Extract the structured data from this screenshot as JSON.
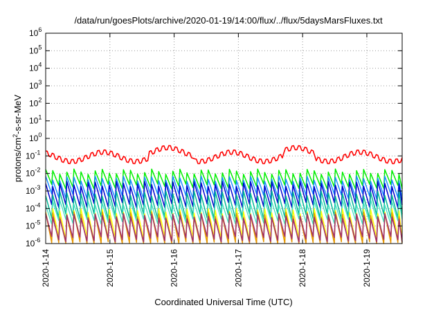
{
  "chart_data": {
    "type": "line",
    "title": "/data/run/goesPlots/archive/2020-01-19/14:00/flux/../flux/5daysMarsFluxes.txt",
    "xlabel": "Coordinated Universal Time (UTC)",
    "ylabel": "protons/cm²-s-sr-MeV",
    "ylabel_base": "protons/cm",
    "ylabel_sup": "2",
    "ylabel_rest": "-s-sr-MeV",
    "y_scale": "log",
    "ylim": [
      1e-06,
      1000000.0
    ],
    "y_ticks": [
      {
        "base": "10",
        "exp": "-6"
      },
      {
        "base": "10",
        "exp": "-5"
      },
      {
        "base": "10",
        "exp": "-4"
      },
      {
        "base": "10",
        "exp": "-3"
      },
      {
        "base": "10",
        "exp": "-2"
      },
      {
        "base": "10",
        "exp": "-1"
      },
      {
        "base": "10",
        "exp": "0"
      },
      {
        "base": "10",
        "exp": "1"
      },
      {
        "base": "10",
        "exp": "2"
      },
      {
        "base": "10",
        "exp": "3"
      },
      {
        "base": "10",
        "exp": "4"
      },
      {
        "base": "10",
        "exp": "5"
      },
      {
        "base": "10",
        "exp": "6"
      }
    ],
    "x_ticks": [
      "2020-1-14",
      "2020-1-15",
      "2020-1-16",
      "2020-1-17",
      "2020-1-18",
      "2020-1-19"
    ],
    "x_range_days": [
      0,
      5.55
    ],
    "grid": true,
    "legend": "none",
    "series": [
      {
        "color": "#ff0000",
        "width": 1.6,
        "baseline_log": -1.0,
        "pattern": "red"
      },
      {
        "color": "#00ee00",
        "width": 1.5,
        "baseline_log": -2.15,
        "pattern": "sawtooth",
        "drop": 0.85
      },
      {
        "color": "#1a8fff",
        "width": 1.5,
        "baseline_log": -2.55,
        "pattern": "sawtooth",
        "drop": 1.0
      },
      {
        "color": "#0000cc",
        "width": 1.5,
        "baseline_log": -2.85,
        "pattern": "sawtooth",
        "drop": 1.2
      },
      {
        "color": "#00b894",
        "width": 1.5,
        "baseline_log": -3.4,
        "pattern": "sawtooth",
        "drop": 1.3
      },
      {
        "color": "#40e0c0",
        "width": 1.3,
        "baseline_log": -3.9,
        "pattern": "sawtooth",
        "drop": 1.1
      },
      {
        "color": "#ffff00",
        "width": 1.4,
        "baseline_log": -4.4,
        "pattern": "sawtooth",
        "drop": 1.6
      },
      {
        "color": "#e69500",
        "width": 1.4,
        "baseline_log": -4.6,
        "pattern": "sawtooth",
        "drop": 1.7
      },
      {
        "color": "#a0306a",
        "width": 1.6,
        "baseline_log": -4.7,
        "pattern": "sawtooth",
        "drop": 1.3
      }
    ]
  }
}
